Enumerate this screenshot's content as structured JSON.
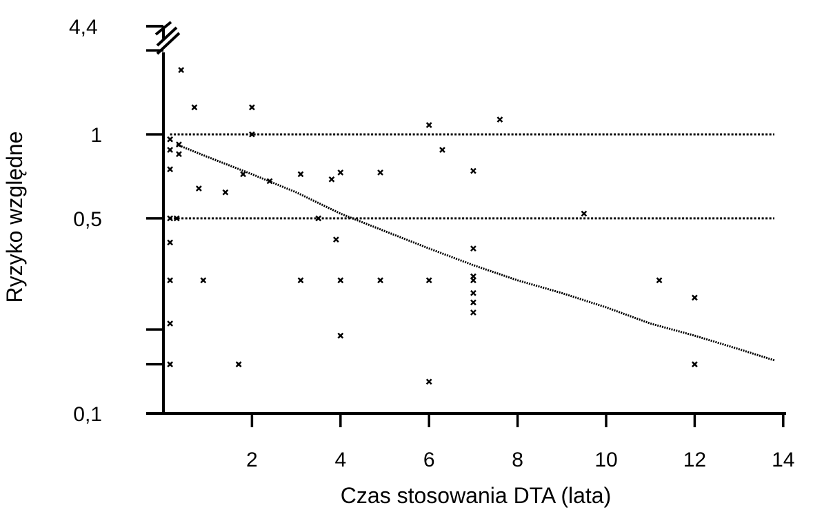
{
  "chart_data": {
    "type": "scatter",
    "title": "",
    "xlabel": "Czas stosowania DTA (lata)",
    "ylabel": "Ryzyko względne",
    "x_scale": "linear",
    "y_scale": "log",
    "xlim": [
      0,
      14
    ],
    "ylim": [
      0.1,
      2
    ],
    "x_ticks": [
      {
        "value": 2,
        "label": "2"
      },
      {
        "value": 4,
        "label": "4"
      },
      {
        "value": 6,
        "label": "6"
      },
      {
        "value": 8,
        "label": "8"
      },
      {
        "value": 10,
        "label": "10"
      },
      {
        "value": 12,
        "label": "12"
      },
      {
        "value": 14,
        "label": "14"
      }
    ],
    "y_ticks": [
      {
        "value": 0.1,
        "label": "0,1"
      },
      {
        "value": 0.15,
        "label": ""
      },
      {
        "value": 0.2,
        "label": ""
      },
      {
        "value": 0.5,
        "label": "0,5"
      },
      {
        "value": 1,
        "label": "1"
      },
      {
        "value": 2,
        "label": ""
      }
    ],
    "axis_break": {
      "label": "4,4",
      "value": 4.4
    },
    "reference_lines": [
      {
        "y": 1.0,
        "style": "dotted"
      },
      {
        "y": 0.5,
        "style": "dotted"
      }
    ],
    "trend_line": {
      "x": [
        0.3,
        1,
        2,
        3,
        4,
        5,
        6,
        7,
        8,
        9,
        10,
        11,
        12,
        13,
        13.8
      ],
      "y": [
        0.92,
        0.83,
        0.72,
        0.62,
        0.52,
        0.45,
        0.39,
        0.34,
        0.3,
        0.27,
        0.24,
        0.21,
        0.19,
        0.17,
        0.155
      ]
    },
    "points": [
      {
        "x": 0.15,
        "y": 0.15
      },
      {
        "x": 0.15,
        "y": 0.21
      },
      {
        "x": 0.15,
        "y": 0.3
      },
      {
        "x": 0.15,
        "y": 0.41
      },
      {
        "x": 0.15,
        "y": 0.5
      },
      {
        "x": 0.15,
        "y": 0.75
      },
      {
        "x": 0.15,
        "y": 0.88
      },
      {
        "x": 0.15,
        "y": 0.96
      },
      {
        "x": 0.3,
        "y": 0.5
      },
      {
        "x": 0.35,
        "y": 0.85
      },
      {
        "x": 0.35,
        "y": 0.92
      },
      {
        "x": 0.4,
        "y": 1.7
      },
      {
        "x": 0.7,
        "y": 1.25
      },
      {
        "x": 0.8,
        "y": 0.64
      },
      {
        "x": 0.9,
        "y": 0.3
      },
      {
        "x": 1.4,
        "y": 0.62
      },
      {
        "x": 1.7,
        "y": 0.15
      },
      {
        "x": 1.8,
        "y": 0.72
      },
      {
        "x": 2.0,
        "y": 1.0
      },
      {
        "x": 2.0,
        "y": 1.25
      },
      {
        "x": 2.4,
        "y": 0.68
      },
      {
        "x": 3.1,
        "y": 0.72
      },
      {
        "x": 3.1,
        "y": 0.3
      },
      {
        "x": 3.5,
        "y": 0.5
      },
      {
        "x": 3.8,
        "y": 0.69
      },
      {
        "x": 3.9,
        "y": 0.42
      },
      {
        "x": 4.0,
        "y": 0.73
      },
      {
        "x": 4.0,
        "y": 0.3
      },
      {
        "x": 4.0,
        "y": 0.19
      },
      {
        "x": 4.9,
        "y": 0.73
      },
      {
        "x": 4.9,
        "y": 0.3
      },
      {
        "x": 6.0,
        "y": 0.3
      },
      {
        "x": 6.0,
        "y": 0.13
      },
      {
        "x": 6.0,
        "y": 1.08
      },
      {
        "x": 6.3,
        "y": 0.88
      },
      {
        "x": 7.0,
        "y": 0.74
      },
      {
        "x": 7.0,
        "y": 0.39
      },
      {
        "x": 7.0,
        "y": 0.31
      },
      {
        "x": 7.0,
        "y": 0.3
      },
      {
        "x": 7.0,
        "y": 0.27
      },
      {
        "x": 7.0,
        "y": 0.25
      },
      {
        "x": 7.0,
        "y": 0.23
      },
      {
        "x": 7.6,
        "y": 1.13
      },
      {
        "x": 9.5,
        "y": 0.52
      },
      {
        "x": 11.2,
        "y": 0.3
      },
      {
        "x": 12.0,
        "y": 0.26
      },
      {
        "x": 12.0,
        "y": 0.15
      }
    ]
  }
}
